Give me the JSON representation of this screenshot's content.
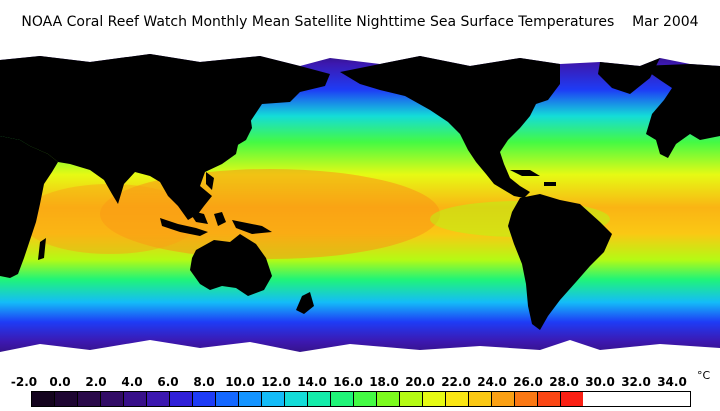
{
  "title": "NOAA Coral Reef Watch Monthly Mean Satellite Nighttime Sea Surface Temperatures    Mar 2004",
  "legend": {
    "unit": "°C",
    "ticks": [
      "-2.0",
      "0.0",
      "2.0",
      "4.0",
      "6.0",
      "8.0",
      "10.0",
      "12.0",
      "14.0",
      "16.0",
      "18.0",
      "20.0",
      "22.0",
      "24.0",
      "26.0",
      "28.0",
      "30.0",
      "32.0",
      "34.0"
    ],
    "colors": [
      "#14041e",
      "#1e0632",
      "#2a0a4a",
      "#320c66",
      "#38108a",
      "#3c18b0",
      "#3020d8",
      "#1e3cf6",
      "#1468ff",
      "#1494ff",
      "#14bcf8",
      "#14dcd8",
      "#14ecaa",
      "#20f478",
      "#44fa44",
      "#7cfa1e",
      "#b4fa14",
      "#e6fa14",
      "#fae614",
      "#fac814",
      "#faa014",
      "#fa7814",
      "#fa4614",
      "#fa2014"
    ]
  },
  "map": {
    "land_color": "#000000",
    "ice_color": "#ffffff"
  }
}
